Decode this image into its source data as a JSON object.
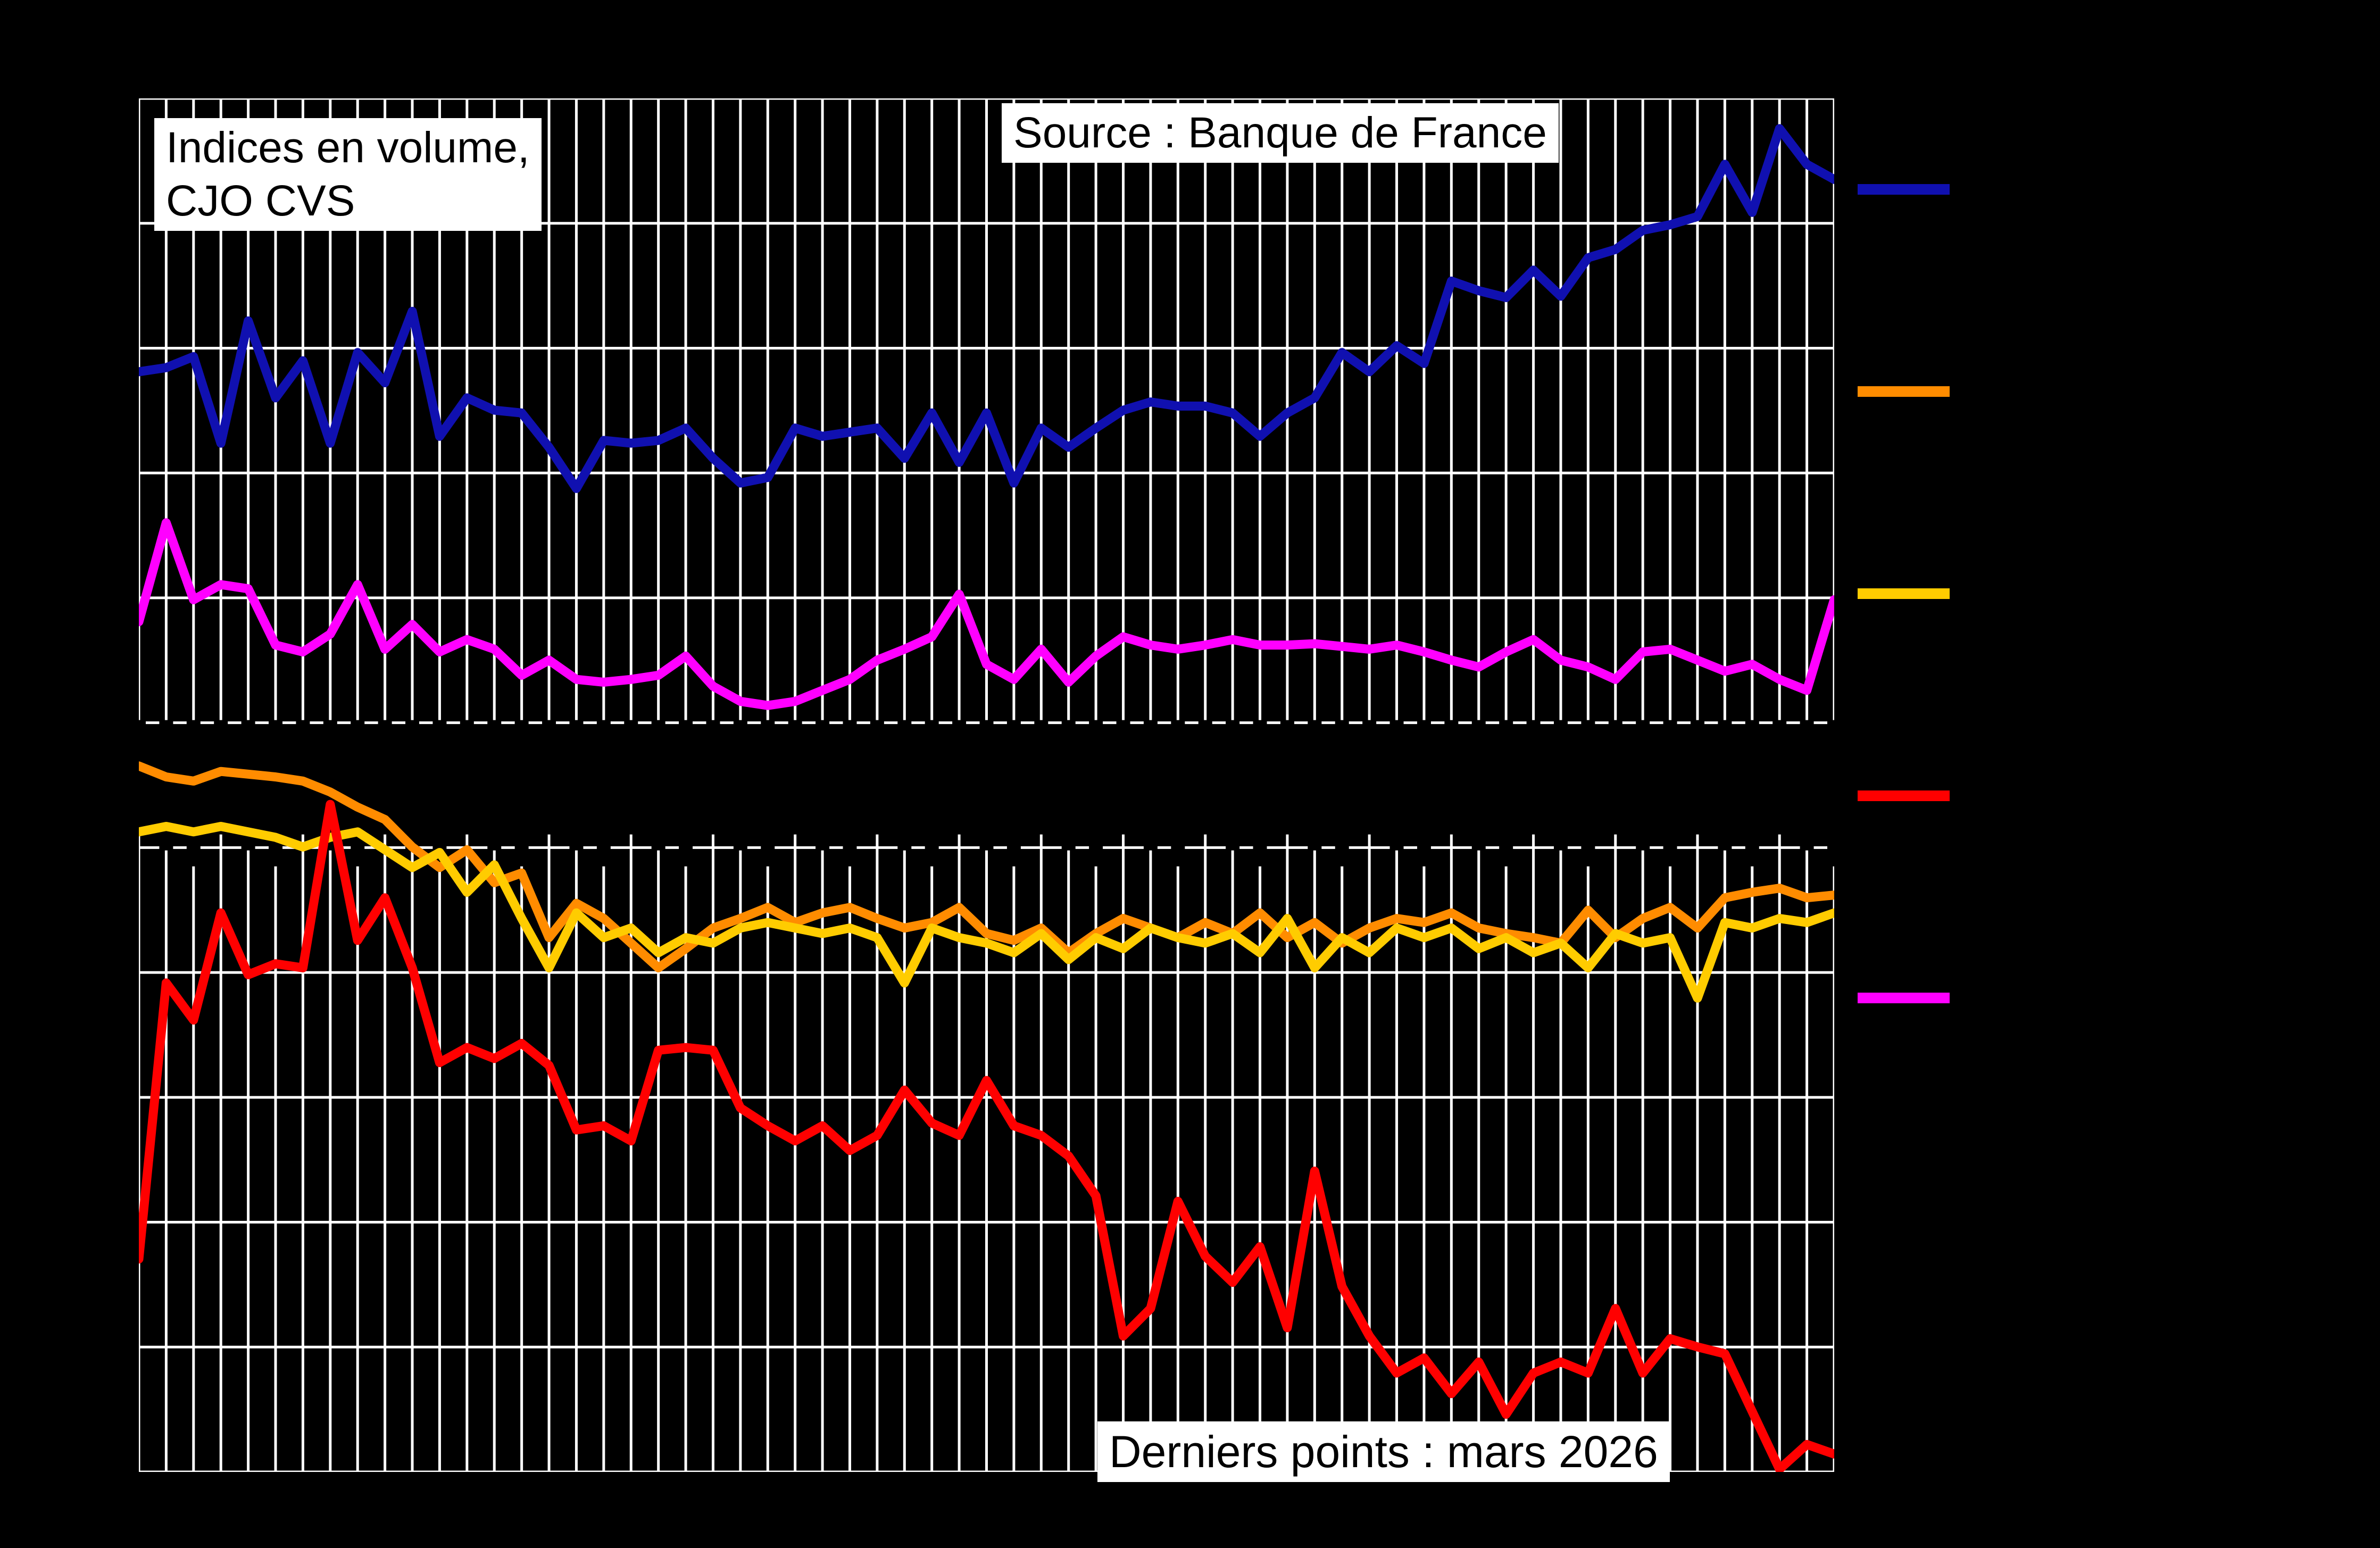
{
  "annotations": {
    "indices_line1": "Indices en volume,",
    "indices_line2": "CJO CVS",
    "source": "Source : Banque de France",
    "derniers_points": "Derniers points : mars 2026"
  },
  "legend": {
    "position": "right",
    "labels_visible": false,
    "items": [
      {
        "name": "dark-blue",
        "color": "#1010b0",
        "label": ""
      },
      {
        "name": "orange",
        "color": "#ff8c00",
        "label": ""
      },
      {
        "name": "yellow",
        "color": "#ffcc00",
        "label": ""
      },
      {
        "name": "red",
        "color": "#ff0000",
        "label": ""
      },
      {
        "name": "magenta",
        "color": "#ff00ff",
        "label": ""
      }
    ]
  },
  "colors": {
    "background": "#000000",
    "plot_background": "#000000",
    "grid": "#ffffff",
    "box_background": "#ffffff",
    "box_text": "#000000"
  },
  "chart_data": {
    "type": "line",
    "title": "",
    "xlabel": "",
    "ylabel": "",
    "x_axis": {
      "n_points": 63,
      "tick_labels_visible": false,
      "last_point": "mars 2026"
    },
    "y_axis": {
      "tick_labels_visible": false,
      "ylim": [
        0,
        100
      ],
      "units": "percent of plot height from bottom (numeric axis labels not legible in source image)"
    },
    "grid": {
      "vertical_lines": 63,
      "horizontal_lines": 12,
      "color": "#ffffff",
      "on": true
    },
    "series": [
      {
        "name": "dark-blue",
        "color": "#1010b0",
        "values": [
          80.1,
          80.4,
          81.2,
          74.9,
          83.8,
          78.2,
          80.9,
          74.9,
          81.5,
          79.3,
          84.5,
          75.4,
          78.2,
          77.3,
          77.1,
          74.6,
          71.6,
          75.1,
          74.9,
          75.1,
          76.0,
          73.8,
          72.0,
          72.4,
          76.0,
          75.4,
          75.7,
          76.0,
          73.8,
          77.1,
          73.5,
          77.1,
          72.0,
          76.0,
          74.6,
          76.0,
          77.3,
          77.9,
          77.6,
          77.6,
          77.1,
          75.4,
          77.1,
          78.2,
          81.5,
          80.1,
          82.0,
          80.7,
          86.7,
          86.0,
          85.5,
          87.5,
          85.6,
          88.4,
          89.0,
          90.4,
          90.8,
          91.4,
          95.2,
          91.7,
          97.8,
          95.2,
          94.1
        ]
      },
      {
        "name": "orange",
        "color": "#ff8c00",
        "values": [
          51.4,
          50.6,
          50.3,
          51.0,
          50.8,
          50.6,
          50.3,
          49.5,
          48.4,
          47.5,
          45.5,
          44.0,
          45.3,
          42.9,
          43.6,
          38.9,
          41.4,
          40.3,
          38.5,
          36.7,
          38.1,
          39.6,
          40.3,
          41.1,
          40.0,
          40.7,
          41.1,
          40.3,
          39.6,
          40.0,
          41.1,
          39.2,
          38.7,
          39.6,
          37.8,
          39.2,
          40.3,
          39.6,
          38.9,
          40.0,
          39.2,
          40.7,
          38.9,
          40.0,
          38.5,
          39.6,
          40.3,
          40.0,
          40.7,
          39.6,
          39.2,
          38.9,
          38.5,
          40.9,
          38.9,
          40.3,
          41.1,
          39.6,
          41.8,
          42.2,
          42.5,
          41.8,
          42.0
        ]
      },
      {
        "name": "yellow",
        "color": "#ffcc00",
        "values": [
          46.6,
          47.0,
          46.6,
          47.0,
          46.6,
          46.2,
          45.5,
          46.2,
          46.6,
          45.3,
          44.0,
          45.1,
          42.2,
          44.2,
          40.3,
          36.7,
          40.7,
          38.9,
          39.6,
          37.8,
          38.9,
          38.5,
          39.6,
          40.0,
          39.6,
          39.2,
          39.6,
          38.9,
          35.6,
          39.6,
          38.9,
          38.5,
          37.8,
          39.2,
          37.3,
          38.9,
          38.1,
          39.6,
          38.9,
          38.5,
          39.2,
          37.8,
          40.3,
          36.7,
          38.9,
          37.8,
          39.6,
          38.9,
          39.6,
          38.1,
          38.9,
          37.8,
          38.5,
          36.7,
          39.2,
          38.5,
          38.9,
          34.5,
          40.0,
          39.6,
          40.3,
          40.0,
          40.7
        ]
      },
      {
        "name": "red",
        "color": "#ff0000",
        "values": [
          15.5,
          35.6,
          32.9,
          40.7,
          36.2,
          37.0,
          36.7,
          48.6,
          38.7,
          41.8,
          36.7,
          29.8,
          30.9,
          30.1,
          31.2,
          29.6,
          24.9,
          25.2,
          24.1,
          30.7,
          30.9,
          30.7,
          26.5,
          25.2,
          24.1,
          25.2,
          23.4,
          24.5,
          27.8,
          25.4,
          24.5,
          28.5,
          25.2,
          24.5,
          23.0,
          20.1,
          9.9,
          11.9,
          19.7,
          15.7,
          13.8,
          16.4,
          10.5,
          21.9,
          13.5,
          9.9,
          7.2,
          8.3,
          5.7,
          8.0,
          4.2,
          7.2,
          8.0,
          7.2,
          11.9,
          7.2,
          9.7,
          9.1,
          8.6,
          4.4,
          0.2,
          2.0,
          1.3
        ]
      },
      {
        "name": "magenta",
        "color": "#ff00ff",
        "values": [
          61.9,
          69.1,
          63.5,
          64.6,
          64.3,
          60.2,
          59.7,
          61.0,
          64.6,
          59.9,
          61.7,
          59.7,
          60.6,
          59.9,
          58.0,
          59.1,
          57.7,
          57.5,
          57.7,
          58.0,
          59.4,
          57.2,
          56.1,
          55.8,
          56.1,
          56.9,
          57.7,
          59.1,
          59.9,
          60.8,
          63.9,
          58.8,
          57.7,
          59.9,
          57.5,
          59.4,
          60.8,
          60.2,
          59.9,
          60.2,
          60.6,
          60.2,
          60.2,
          60.3,
          60.1,
          59.9,
          60.2,
          59.7,
          59.1,
          58.6,
          59.7,
          60.6,
          59.1,
          58.6,
          57.7,
          59.7,
          59.9,
          59.1,
          58.3,
          58.8,
          57.7,
          56.9,
          63.5
        ]
      }
    ]
  }
}
